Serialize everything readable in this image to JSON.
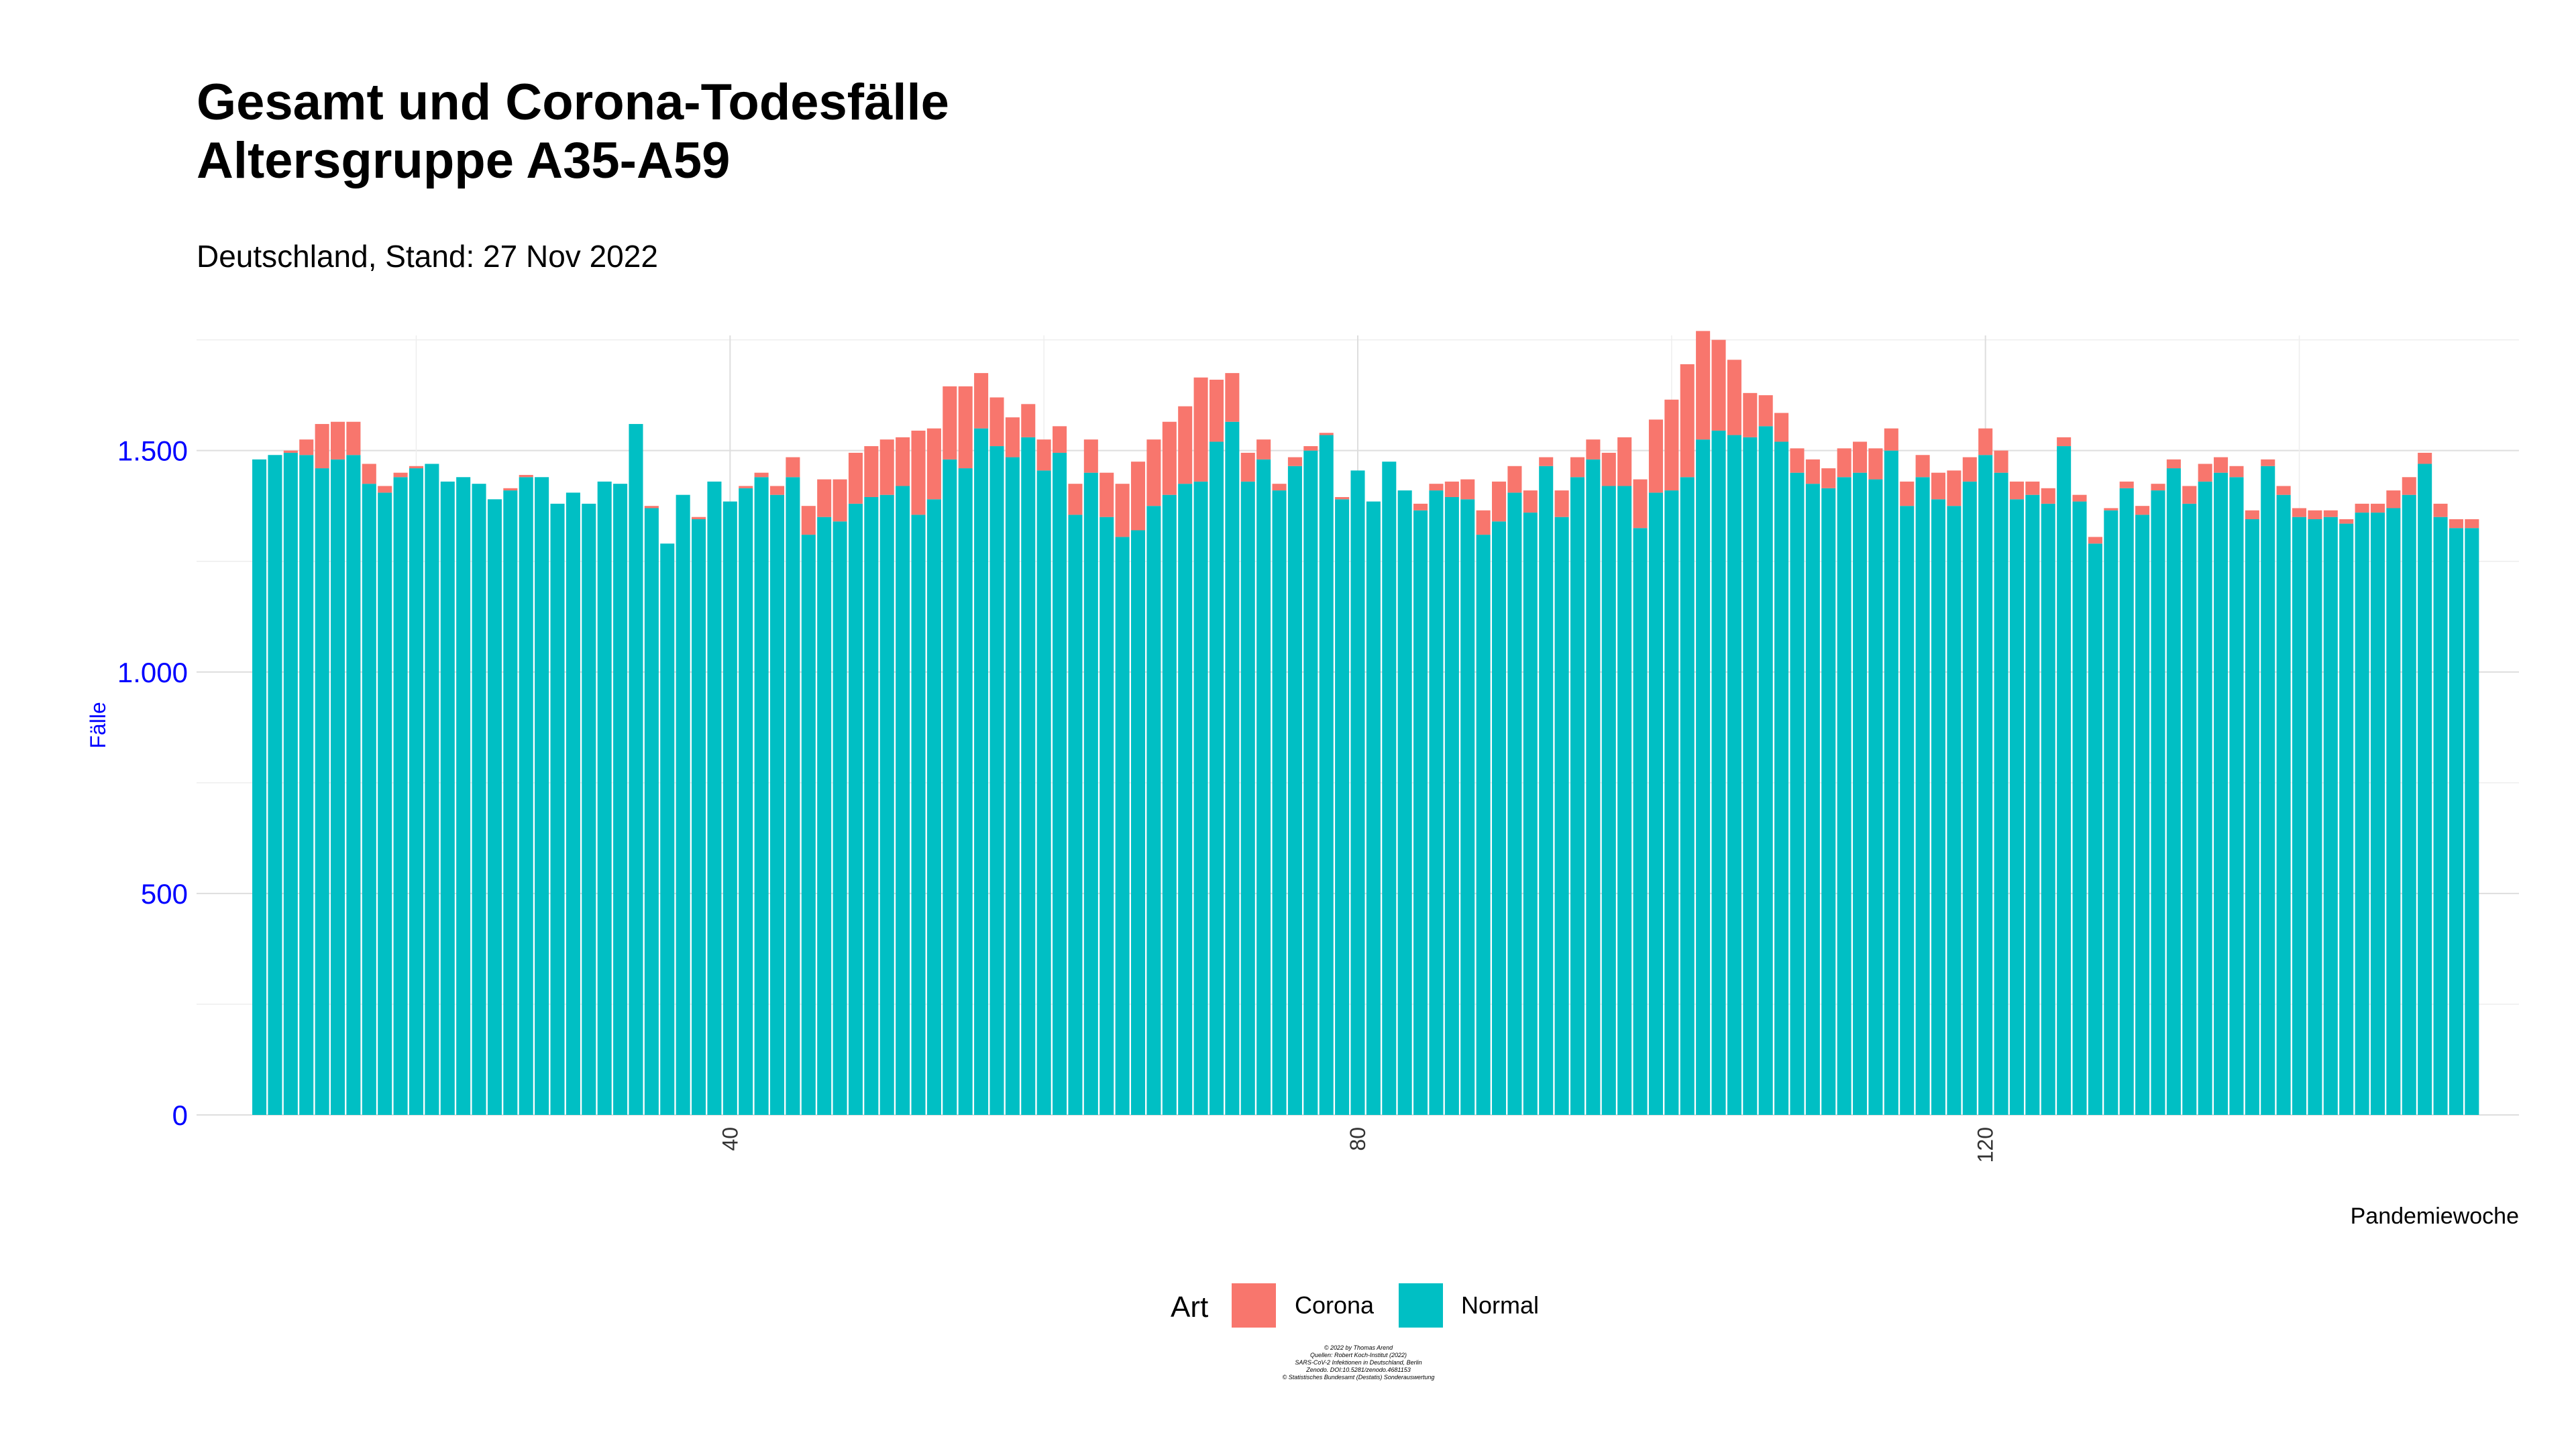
{
  "colors": {
    "corona": "#F8766D",
    "normal": "#00BFC4",
    "axis_text": "#0000FF"
  },
  "chart_data": {
    "type": "bar",
    "stacked": true,
    "title": [
      "Gesamt und Corona-Todesfälle",
      "Altersgruppe A35-A59"
    ],
    "subtitle": "Deutschland, Stand: 27 Nov 2022",
    "xlabel": "Pandemiewoche",
    "ylabel": "Fälle",
    "xlim": [
      6,
      154
    ],
    "ylim": [
      0,
      1760
    ],
    "x_ticks": [
      40,
      80,
      120
    ],
    "y_ticks": [
      0,
      500,
      1000,
      1500
    ],
    "y_tick_labels": [
      "0",
      "500",
      "1.000",
      "1.500"
    ],
    "grid": true,
    "legend": {
      "title": "Art",
      "position": "bottom",
      "entries": [
        "Corona",
        "Normal"
      ]
    },
    "x_start": 10,
    "series": [
      {
        "name": "Normal",
        "values": [
          1480,
          1490,
          1495,
          1490,
          1460,
          1480,
          1490,
          1425,
          1405,
          1440,
          1460,
          1470,
          1430,
          1440,
          1425,
          1390,
          1410,
          1440,
          1440,
          1380,
          1405,
          1380,
          1430,
          1425,
          1560,
          1370,
          1290,
          1400,
          1345,
          1430,
          1385,
          1415,
          1440,
          1400,
          1440,
          1310,
          1350,
          1340,
          1380,
          1395,
          1400,
          1420,
          1355,
          1390,
          1480,
          1460,
          1550,
          1510,
          1485,
          1530,
          1455,
          1495,
          1355,
          1450,
          1350,
          1305,
          1320,
          1375,
          1400,
          1425,
          1430,
          1520,
          1565,
          1430,
          1480,
          1410,
          1465,
          1500,
          1535,
          1390,
          1455,
          1385,
          1475,
          1410,
          1365,
          1410,
          1395,
          1390,
          1310,
          1340,
          1405,
          1360,
          1465,
          1350,
          1440,
          1480,
          1420,
          1420,
          1325,
          1405,
          1410,
          1440,
          1525,
          1545,
          1535,
          1530,
          1555,
          1520,
          1450,
          1425,
          1415,
          1440,
          1450,
          1435,
          1500,
          1375,
          1440,
          1390,
          1375,
          1430,
          1490,
          1450,
          1390,
          1400,
          1380,
          1510,
          1385,
          1290,
          1365,
          1415,
          1355,
          1410,
          1460,
          1380,
          1430,
          1450,
          1440,
          1345,
          1465,
          1400,
          1350,
          1345,
          1350,
          1335,
          1360,
          1360,
          1370,
          1400,
          1470,
          1350,
          1325,
          1325
        ]
      },
      {
        "name": "Corona",
        "values": [
          0,
          0,
          5,
          35,
          100,
          85,
          75,
          45,
          15,
          10,
          5,
          0,
          0,
          0,
          0,
          0,
          5,
          5,
          0,
          0,
          0,
          0,
          0,
          0,
          0,
          5,
          0,
          0,
          5,
          0,
          0,
          5,
          10,
          20,
          45,
          65,
          85,
          95,
          115,
          115,
          125,
          110,
          190,
          160,
          165,
          185,
          125,
          110,
          90,
          75,
          70,
          60,
          70,
          75,
          100,
          120,
          155,
          150,
          165,
          175,
          235,
          140,
          110,
          65,
          45,
          15,
          20,
          10,
          5,
          5,
          0,
          0,
          0,
          0,
          15,
          15,
          35,
          45,
          55,
          90,
          60,
          50,
          20,
          60,
          45,
          45,
          75,
          110,
          110,
          165,
          205,
          255,
          245,
          205,
          170,
          100,
          70,
          65,
          55,
          55,
          45,
          65,
          70,
          70,
          50,
          55,
          50,
          60,
          80,
          55,
          60,
          50,
          40,
          30,
          35,
          20,
          15,
          15,
          5,
          15,
          20,
          15,
          20,
          40,
          40,
          35,
          25,
          20,
          15,
          20,
          20,
          20,
          15,
          10,
          20,
          20,
          40,
          40,
          25,
          30,
          20,
          20
        ]
      }
    ],
    "caption": [
      "© 2022 by Thomas Arend",
      "Quellen: Robert Koch-Institut (2022)",
      "SARS-CoV-2 Infektionen in Deutschland, Berlin",
      "Zenodo. DOI:10.5281/zenodo.4681153",
      "© Statistisches Bundesamt (Destatis) Sonderauswertung"
    ]
  }
}
